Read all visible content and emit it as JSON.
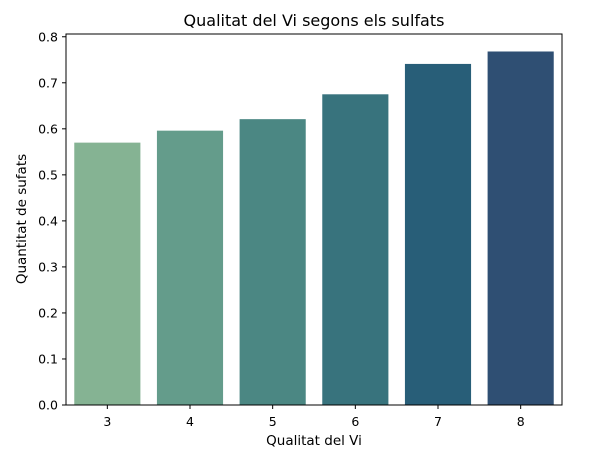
{
  "chart_data": {
    "type": "bar",
    "title": "Qualitat del Vi segons els sulfats",
    "xlabel": "Qualitat del Vi",
    "ylabel": "Quantitat de sufats",
    "categories": [
      "3",
      "4",
      "5",
      "6",
      "7",
      "8"
    ],
    "values": [
      0.57,
      0.596,
      0.621,
      0.675,
      0.741,
      0.768
    ],
    "ylim": [
      0,
      0.806
    ],
    "yticks": [
      0.0,
      0.1,
      0.2,
      0.3,
      0.4,
      0.5,
      0.6,
      0.7,
      0.8
    ],
    "ytick_labels": [
      "0.0",
      "0.1",
      "0.2",
      "0.3",
      "0.4",
      "0.5",
      "0.6",
      "0.7",
      "0.8"
    ],
    "colors": [
      "#85b393",
      "#649c8b",
      "#4b8783",
      "#38737d",
      "#285e78",
      "#2f4f73"
    ],
    "grid": false,
    "legend": "none"
  }
}
